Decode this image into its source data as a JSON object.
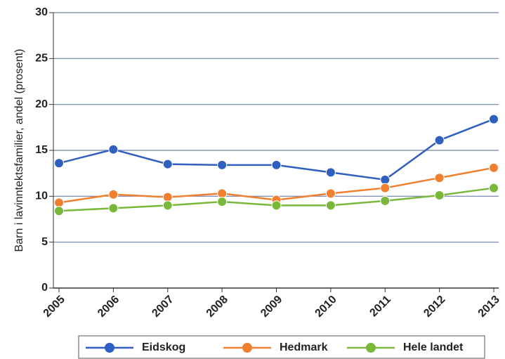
{
  "chart_data": {
    "type": "line",
    "y_label": "Barn i lavinntektsfamilier, andel (prosent)",
    "categories": [
      "2005",
      "2006",
      "2007",
      "2008",
      "2009",
      "2010",
      "2011",
      "2012",
      "2013"
    ],
    "series": [
      {
        "name": "Eidskog",
        "color": "#2f5fbf",
        "values": [
          13.6,
          15.1,
          13.5,
          13.4,
          13.4,
          12.6,
          11.8,
          16.1,
          18.4
        ]
      },
      {
        "name": "Hedmark",
        "color": "#f08030",
        "values": [
          9.3,
          10.2,
          9.9,
          10.3,
          9.6,
          10.3,
          10.9,
          12.0,
          13.1
        ]
      },
      {
        "name": "Hele landet",
        "color": "#7ab83c",
        "values": [
          8.4,
          8.7,
          9.0,
          9.4,
          9.0,
          9.0,
          9.5,
          10.1,
          10.9
        ]
      }
    ],
    "ylim": [
      0,
      30
    ],
    "yticks": [
      0,
      5,
      10,
      15,
      20,
      25,
      30
    ],
    "grid": true
  }
}
